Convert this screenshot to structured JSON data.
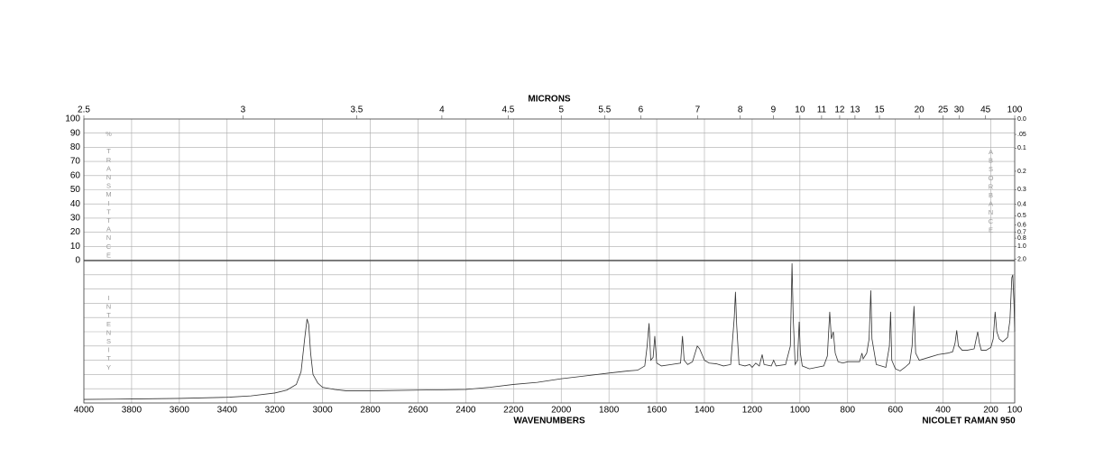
{
  "chart_data": {
    "type": "line",
    "x2_label": "MICRONS",
    "x_label": "WAVENUMBERS",
    "instrument": "NICOLET RAMAN 950",
    "y_label": "% TRANSMITTANCE",
    "y2_label": "ABSORBANCE",
    "intensity_label": "INTENSITY",
    "xlim": [
      4000,
      100
    ],
    "xticks": [
      4000,
      3800,
      3600,
      3400,
      3200,
      3000,
      2800,
      2600,
      2400,
      2200,
      2000,
      1800,
      1600,
      1400,
      1200,
      1000,
      800,
      600,
      400,
      200,
      100
    ],
    "x2ticks": [
      2.5,
      3,
      3.5,
      4,
      4.5,
      5,
      5.5,
      6,
      7,
      8,
      9,
      10,
      11,
      12,
      13,
      15,
      20,
      25,
      30,
      45,
      100
    ],
    "ylim": [
      0,
      100
    ],
    "yticks": [
      0,
      10,
      20,
      30,
      40,
      50,
      60,
      70,
      80,
      90,
      100
    ],
    "y2lim": [
      0,
      2
    ],
    "y2ticks": [
      {
        "value": 0,
        "label": "0.0"
      },
      {
        "value": 0.05,
        "label": ".05"
      },
      {
        "value": 0.1,
        "label": "0.1"
      },
      0.2,
      0.3,
      0.4,
      0.5,
      0.6,
      0.7,
      0.8,
      {
        "value": 1,
        "label": "1.0"
      },
      {
        "value": 2,
        "label": "2.0"
      }
    ],
    "grid": true,
    "color": "#333333",
    "x": [
      4000,
      3800,
      3600,
      3400,
      3300,
      3200,
      3150,
      3110,
      3090,
      3075,
      3065,
      3058,
      3050,
      3040,
      3020,
      3000,
      2950,
      2900,
      2800,
      2600,
      2400,
      2300,
      2200,
      2100,
      2000,
      1900,
      1800,
      1720,
      1680,
      1650,
      1640,
      1632,
      1625,
      1615,
      1608,
      1600,
      1580,
      1540,
      1500,
      1492,
      1485,
      1470,
      1450,
      1430,
      1420,
      1400,
      1380,
      1350,
      1320,
      1290,
      1275,
      1270,
      1265,
      1255,
      1230,
      1210,
      1200,
      1185,
      1170,
      1158,
      1150,
      1120,
      1110,
      1100,
      1060,
      1040,
      1033,
      1028,
      1020,
      1010,
      1003,
      998,
      990,
      960,
      930,
      900,
      885,
      875,
      868,
      860,
      852,
      840,
      820,
      800,
      770,
      750,
      740,
      735,
      720,
      710,
      703,
      698,
      680,
      660,
      640,
      625,
      620,
      615,
      600,
      580,
      560,
      540,
      530,
      522,
      515,
      500,
      460,
      420,
      380,
      360,
      350,
      343,
      336,
      320,
      300,
      270,
      255,
      248,
      240,
      220,
      200,
      190,
      182,
      175,
      165,
      150,
      130,
      120,
      112,
      108,
      103,
      100
    ],
    "values": [
      2.5,
      2.8,
      3.2,
      4,
      5,
      7,
      9,
      13,
      22,
      45,
      59,
      55,
      35,
      20,
      14,
      11,
      9.5,
      8.5,
      8.5,
      9,
      9.5,
      11,
      13,
      14.5,
      17,
      19,
      21,
      22.5,
      23,
      26,
      40,
      56,
      30,
      32,
      47,
      28,
      26,
      27,
      28,
      47,
      30,
      27,
      29,
      40,
      38,
      30,
      28,
      27.5,
      26,
      27,
      60,
      78,
      55,
      27,
      26,
      27,
      25,
      28,
      26,
      34,
      27,
      26,
      30,
      26,
      27,
      40,
      98,
      60,
      27,
      30,
      57,
      35,
      26,
      24,
      25,
      26,
      33,
      64,
      45,
      50,
      35,
      29,
      28,
      29,
      29,
      29,
      35,
      31,
      35,
      45,
      79,
      45,
      27,
      26,
      25,
      40,
      64,
      30,
      24,
      22.5,
      25,
      28,
      40,
      68,
      35,
      30,
      32,
      34,
      35,
      36,
      42,
      51,
      40,
      37,
      37,
      38,
      50,
      42,
      37,
      37,
      39,
      45,
      64,
      50,
      45,
      43,
      46,
      58,
      88,
      90,
      70,
      50
    ]
  }
}
